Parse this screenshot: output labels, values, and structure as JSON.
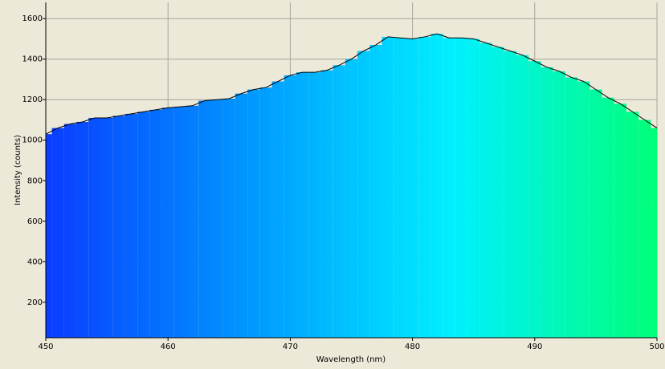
{
  "chart_data": {
    "type": "line",
    "x_label": "Wavelength (nm)",
    "y_label": "Intensity (counts)",
    "x": [
      450,
      451,
      452,
      453,
      454,
      455,
      456,
      457,
      458,
      459,
      460,
      461,
      462,
      463,
      464,
      465,
      466,
      467,
      468,
      469,
      470,
      471,
      472,
      473,
      474,
      475,
      476,
      477,
      478,
      479,
      480,
      481,
      482,
      483,
      484,
      485,
      486,
      487,
      488,
      489,
      490,
      491,
      492,
      493,
      494,
      495,
      496,
      497,
      498,
      499,
      500
    ],
    "series": [
      {
        "color": "#000000",
        "values": [
          1030,
          1060,
          1080,
          1090,
          1110,
          1110,
          1120,
          1130,
          1140,
          1150,
          1160,
          1165,
          1170,
          1195,
          1200,
          1205,
          1230,
          1250,
          1260,
          1290,
          1320,
          1335,
          1335,
          1345,
          1370,
          1400,
          1440,
          1470,
          1510,
          1505,
          1500,
          1510,
          1525,
          1505,
          1505,
          1500,
          1480,
          1460,
          1440,
          1420,
          1390,
          1360,
          1340,
          1310,
          1290,
          1250,
          1210,
          1180,
          1140,
          1100,
          1060
        ]
      }
    ],
    "fill_gradient": [
      "#0a3cff",
      "#0098ff",
      "#00f0ff",
      "#00ff78"
    ],
    "xlim": [
      450,
      500
    ],
    "xticks": [
      450,
      460,
      470,
      480,
      490,
      500
    ],
    "ylim": [
      25,
      1680
    ],
    "yticks": [
      200,
      400,
      600,
      800,
      1000,
      1200,
      1400,
      1600
    ],
    "grid": true
  }
}
